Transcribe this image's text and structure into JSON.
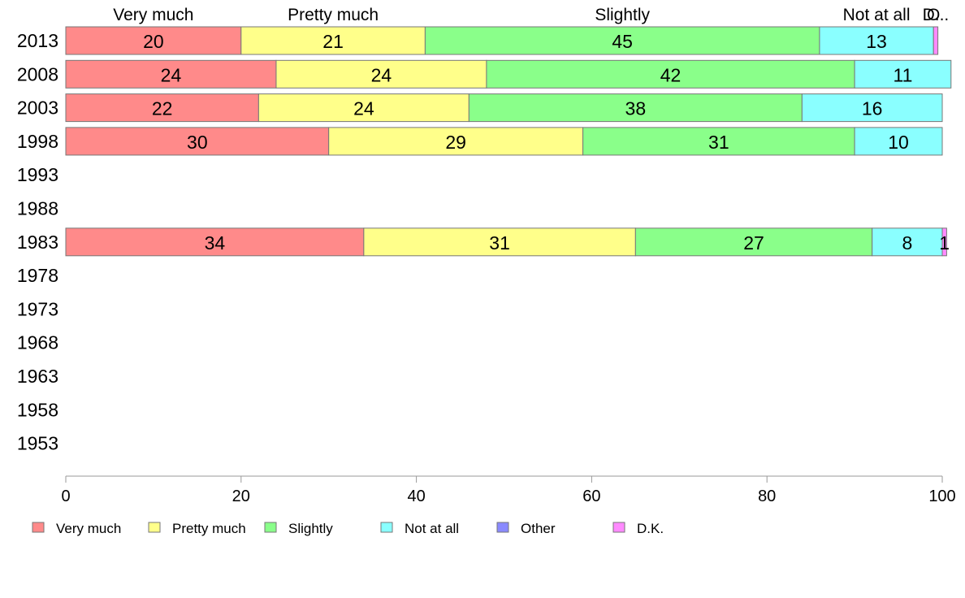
{
  "chart_data": {
    "type": "bar",
    "orientation": "horizontal",
    "stacked": true,
    "categories": [
      "2013",
      "2008",
      "2003",
      "1998",
      "1993",
      "1988",
      "1983",
      "1978",
      "1973",
      "1968",
      "1963",
      "1958",
      "1953"
    ],
    "series": [
      {
        "name": "Very much",
        "color": "#ff8a8a",
        "values": [
          20,
          24,
          22,
          30,
          null,
          null,
          34,
          null,
          null,
          null,
          null,
          null,
          null
        ]
      },
      {
        "name": "Pretty much",
        "color": "#ffff8a",
        "values": [
          21,
          24,
          24,
          29,
          null,
          null,
          31,
          null,
          null,
          null,
          null,
          null,
          null
        ]
      },
      {
        "name": "Slightly",
        "color": "#8aff8a",
        "values": [
          45,
          42,
          38,
          31,
          null,
          null,
          27,
          null,
          null,
          null,
          null,
          null,
          null
        ]
      },
      {
        "name": "Not at all",
        "color": "#8affff",
        "values": [
          13,
          11,
          16,
          10,
          null,
          null,
          8,
          null,
          null,
          null,
          null,
          null,
          null
        ]
      },
      {
        "name": "Other",
        "color": "#8a8aff",
        "values": [
          0,
          0,
          0,
          0,
          null,
          null,
          0,
          null,
          null,
          null,
          null,
          null,
          null
        ]
      },
      {
        "name": "D.K.",
        "color": "#ff8aff",
        "values": [
          0.5,
          0,
          0,
          0,
          null,
          null,
          0.5,
          null,
          null,
          null,
          null,
          null,
          null
        ]
      }
    ],
    "data_labels": [
      [
        "20",
        "21",
        "45",
        "13",
        "",
        ""
      ],
      [
        "24",
        "24",
        "42",
        "11",
        "",
        ""
      ],
      [
        "22",
        "24",
        "38",
        "16",
        "",
        ""
      ],
      [
        "30",
        "29",
        "31",
        "10",
        "",
        ""
      ],
      null,
      null,
      [
        "34",
        "31",
        "27",
        "8",
        "",
        "1"
      ],
      null,
      null,
      null,
      null,
      null,
      null
    ],
    "top_labels": [
      "Very much",
      "Pretty much",
      "Slightly",
      "Not at all",
      "O",
      "D..."
    ],
    "xlim": [
      0,
      100
    ],
    "xticks": [
      0,
      20,
      40,
      60,
      80,
      100
    ],
    "grid": false,
    "legend_position": "bottom"
  }
}
